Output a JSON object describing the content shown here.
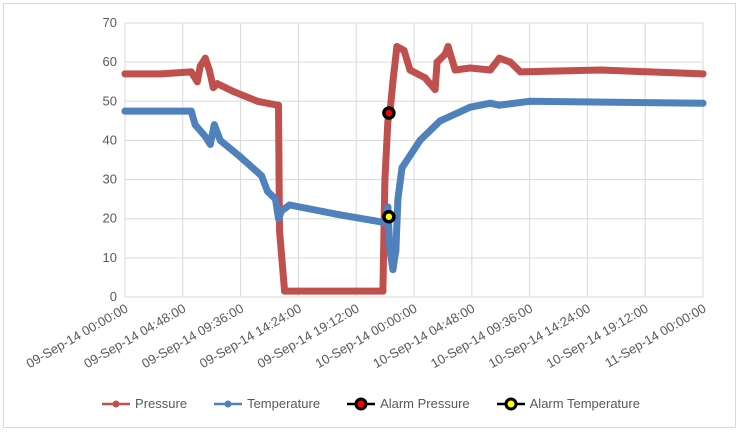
{
  "chart_data": {
    "type": "line",
    "title": "",
    "xlabel": "",
    "ylabel": "",
    "ylim": [
      0,
      70
    ],
    "yticks": [
      "0",
      "10",
      "20",
      "30",
      "40",
      "50",
      "60",
      "70"
    ],
    "xlim": [
      "2014-09-09T00:00",
      "2014-09-11T00:00"
    ],
    "xticks": [
      "09-Sep-14 00:00:00",
      "09-Sep-14 04:48:00",
      "09-Sep-14 09:36:00",
      "09-Sep-14 14:24:00",
      "09-Sep-14 19:12:00",
      "10-Sep-14 00:00:00",
      "10-Sep-14 04:48:00",
      "10-Sep-14 09:36:00",
      "10-Sep-14 14:24:00",
      "10-Sep-14 19:12:00",
      "11-Sep-14 00:00:00"
    ],
    "grid": true,
    "legend_position": "bottom",
    "series": [
      {
        "name": "Pressure",
        "color": "#c0504d",
        "points": [
          [
            "2014-09-09T00:00",
            57
          ],
          [
            "2014-09-09T03:00",
            57
          ],
          [
            "2014-09-09T05:30",
            57.5
          ],
          [
            "2014-09-09T06:00",
            55
          ],
          [
            "2014-09-09T06:15",
            59
          ],
          [
            "2014-09-09T06:40",
            61
          ],
          [
            "2014-09-09T07:00",
            58
          ],
          [
            "2014-09-09T07:20",
            53.5
          ],
          [
            "2014-09-09T07:40",
            54.5
          ],
          [
            "2014-09-09T09:00",
            52.5
          ],
          [
            "2014-09-09T11:00",
            50
          ],
          [
            "2014-09-09T12:40",
            49
          ],
          [
            "2014-09-09T12:45",
            49
          ],
          [
            "2014-09-09T12:50",
            17
          ],
          [
            "2014-09-09T13:15",
            1.5
          ],
          [
            "2014-09-09T21:25",
            1.5
          ],
          [
            "2014-09-09T21:35",
            30
          ],
          [
            "2014-09-09T21:50",
            45
          ],
          [
            "2014-09-09T22:00",
            47
          ],
          [
            "2014-09-09T22:15",
            55
          ],
          [
            "2014-09-09T22:35",
            64
          ],
          [
            "2014-09-09T23:10",
            63
          ],
          [
            "2014-09-09T23:40",
            58
          ],
          [
            "2014-09-10T00:55",
            56
          ],
          [
            "2014-09-10T01:45",
            53
          ],
          [
            "2014-09-10T01:55",
            60
          ],
          [
            "2014-09-10T02:35",
            62
          ],
          [
            "2014-09-10T02:50",
            64
          ],
          [
            "2014-09-10T03:25",
            58
          ],
          [
            "2014-09-10T04:40",
            58.5
          ],
          [
            "2014-09-10T06:20",
            58
          ],
          [
            "2014-09-10T07:05",
            61
          ],
          [
            "2014-09-10T08:00",
            60
          ],
          [
            "2014-09-10T08:50",
            57.5
          ],
          [
            "2014-09-10T15:30",
            58
          ],
          [
            "2014-09-10T19:35",
            57.5
          ],
          [
            "2014-09-11T00:00",
            57
          ]
        ]
      },
      {
        "name": "Temperature",
        "color": "#4f81bd",
        "points": [
          [
            "2014-09-09T00:00",
            47.5
          ],
          [
            "2014-09-09T05:30",
            47.5
          ],
          [
            "2014-09-09T05:50",
            44
          ],
          [
            "2014-09-09T06:40",
            41
          ],
          [
            "2014-09-09T07:05",
            39
          ],
          [
            "2014-09-09T07:25",
            44
          ],
          [
            "2014-09-09T07:55",
            40
          ],
          [
            "2014-09-09T09:30",
            36
          ],
          [
            "2014-09-09T11:20",
            31
          ],
          [
            "2014-09-09T11:50",
            27
          ],
          [
            "2014-09-09T12:30",
            25
          ],
          [
            "2014-09-09T12:45",
            20
          ],
          [
            "2014-09-09T13:00",
            22
          ],
          [
            "2014-09-09T13:40",
            23.5
          ],
          [
            "2014-09-09T17:50",
            21
          ],
          [
            "2014-09-09T21:35",
            19
          ],
          [
            "2014-09-09T21:50",
            23
          ],
          [
            "2014-09-09T22:00",
            12
          ],
          [
            "2014-09-09T22:15",
            7
          ],
          [
            "2014-09-09T22:30",
            12
          ],
          [
            "2014-09-09T22:40",
            25
          ],
          [
            "2014-09-09T23:00",
            33
          ],
          [
            "2014-09-10T00:30",
            40
          ],
          [
            "2014-09-10T02:10",
            45
          ],
          [
            "2014-09-10T04:40",
            48.5
          ],
          [
            "2014-09-10T06:20",
            49.5
          ],
          [
            "2014-09-10T07:05",
            49
          ],
          [
            "2014-09-10T09:35",
            50
          ],
          [
            "2014-09-11T00:00",
            49.5
          ]
        ]
      },
      {
        "name": "Alarm Pressure",
        "color": "#000000",
        "marker_fill": "#ff0000",
        "points": [
          [
            "2014-09-09T21:55",
            47
          ]
        ]
      },
      {
        "name": "Alarm Temperature",
        "color": "#000000",
        "marker_fill": "#ffff00",
        "points": [
          [
            "2014-09-09T21:55",
            20.5
          ]
        ]
      }
    ]
  }
}
